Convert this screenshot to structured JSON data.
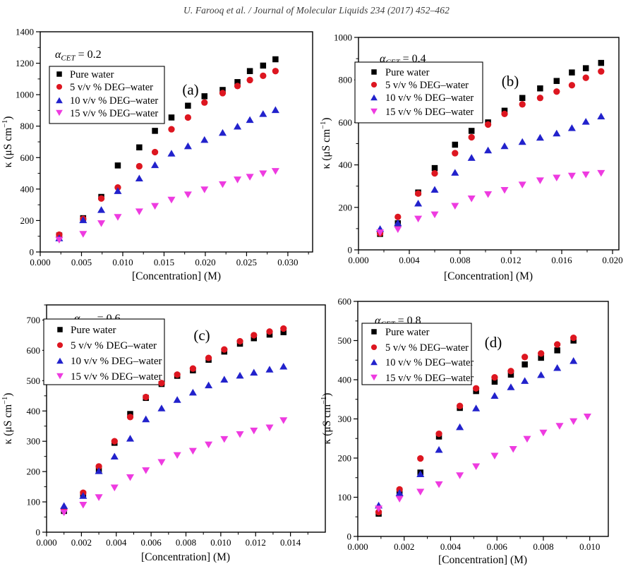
{
  "header": {
    "citation": "U. Farooq et al. / Journal of Molecular Liquids 234 (2017) 452–462"
  },
  "figure": {
    "xlabel": "[Concentration] (M)",
    "ylabel_base": "κ (μS cm",
    "ylabel_sup": "−1",
    "ylabel_close": ")",
    "legend_labels": [
      "Pure water",
      "5 v/v % DEG–water",
      "10 v/v % DEG–water",
      "15 v/v % DEG–water"
    ],
    "colors": {
      "pure_water": "#000000",
      "deg_5": "#dd1620",
      "deg_10": "#2222cc",
      "deg_15": "#ee3be0"
    }
  },
  "chart_data": [
    {
      "type": "scatter",
      "panel_label": "(a)",
      "alpha_title": {
        "symbol": "α",
        "sub": "CET",
        "value": "= 0.2"
      },
      "xlabel": "[Concentration] (M)",
      "ylabel": "κ (μS cm−1)",
      "xlim": [
        0,
        0.033
      ],
      "ylim": [
        0,
        1400
      ],
      "xticks": [
        0.0,
        0.005,
        0.01,
        0.015,
        0.02,
        0.025,
        0.03
      ],
      "yticks": [
        0,
        200,
        400,
        600,
        800,
        1000,
        1200,
        1400
      ],
      "series": [
        {
          "name": "Pure water",
          "marker": "square",
          "color": "#000000",
          "x": [
            0.0023,
            0.0052,
            0.0074,
            0.0094,
            0.012,
            0.0139,
            0.0159,
            0.0179,
            0.0199,
            0.0221,
            0.0239,
            0.0254,
            0.027,
            0.0285
          ],
          "y": [
            105,
            215,
            350,
            550,
            665,
            770,
            855,
            930,
            990,
            1030,
            1080,
            1150,
            1185,
            1225
          ]
        },
        {
          "name": "5 v/v % DEG–water",
          "marker": "circle",
          "color": "#dd1620",
          "x": [
            0.0023,
            0.0052,
            0.0074,
            0.0094,
            0.012,
            0.0139,
            0.0159,
            0.0179,
            0.0199,
            0.0221,
            0.0239,
            0.0254,
            0.027,
            0.0285
          ],
          "y": [
            110,
            210,
            340,
            410,
            545,
            635,
            780,
            855,
            950,
            1010,
            1055,
            1093,
            1120,
            1150
          ]
        },
        {
          "name": "10 v/v % DEG–water",
          "marker": "triangle-up",
          "color": "#2222cc",
          "x": [
            0.0023,
            0.0052,
            0.0074,
            0.0094,
            0.012,
            0.0139,
            0.0159,
            0.0179,
            0.0199,
            0.0221,
            0.0239,
            0.0254,
            0.027,
            0.0285
          ],
          "y": [
            90,
            205,
            270,
            390,
            470,
            555,
            628,
            675,
            715,
            760,
            800,
            842,
            880,
            905
          ]
        },
        {
          "name": "15 v/v % DEG–water",
          "marker": "triangle-down",
          "color": "#ee3be0",
          "x": [
            0.0023,
            0.0052,
            0.0074,
            0.0094,
            0.012,
            0.0139,
            0.0159,
            0.0179,
            0.0199,
            0.0221,
            0.0239,
            0.0254,
            0.027,
            0.0285
          ],
          "y": [
            75,
            112,
            180,
            220,
            255,
            290,
            330,
            363,
            395,
            428,
            458,
            475,
            497,
            512
          ]
        }
      ]
    },
    {
      "type": "scatter",
      "panel_label": "(b)",
      "alpha_title": {
        "symbol": "α",
        "sub": "CET",
        "value": "= 0.4"
      },
      "xlabel": "[Concentration] (M)",
      "ylabel": "κ (μS cm−1)",
      "xlim": [
        0,
        0.0205
      ],
      "ylim": [
        0,
        1000
      ],
      "xticks": [
        0.0,
        0.004,
        0.008,
        0.012,
        0.016,
        0.02
      ],
      "yticks": [
        0,
        200,
        400,
        600,
        800,
        1000
      ],
      "series": [
        {
          "name": "Pure water",
          "marker": "square",
          "color": "#000000",
          "x": [
            0.0017,
            0.0031,
            0.0047,
            0.006,
            0.0076,
            0.0089,
            0.0102,
            0.0115,
            0.0129,
            0.0143,
            0.0156,
            0.0168,
            0.0179,
            0.0191
          ],
          "y": [
            75,
            125,
            270,
            385,
            495,
            560,
            600,
            655,
            715,
            760,
            795,
            835,
            855,
            880
          ]
        },
        {
          "name": "5 v/v % DEG–water",
          "marker": "circle",
          "color": "#dd1620",
          "x": [
            0.0017,
            0.0031,
            0.0047,
            0.006,
            0.0076,
            0.0089,
            0.0102,
            0.0115,
            0.0129,
            0.0143,
            0.0156,
            0.0168,
            0.0179,
            0.0191
          ],
          "y": [
            78,
            155,
            265,
            360,
            455,
            530,
            590,
            640,
            685,
            715,
            745,
            775,
            810,
            840
          ]
        },
        {
          "name": "10 v/v % DEG–water",
          "marker": "triangle-up",
          "color": "#2222cc",
          "x": [
            0.0017,
            0.0031,
            0.0047,
            0.006,
            0.0076,
            0.0089,
            0.0102,
            0.0115,
            0.0129,
            0.0143,
            0.0156,
            0.0168,
            0.0179,
            0.0191
          ],
          "y": [
            100,
            128,
            220,
            285,
            365,
            435,
            470,
            490,
            510,
            530,
            550,
            575,
            605,
            630
          ]
        },
        {
          "name": "15 v/v % DEG–water",
          "marker": "triangle-down",
          "color": "#ee3be0",
          "x": [
            0.0017,
            0.0031,
            0.0047,
            0.006,
            0.0076,
            0.0089,
            0.0102,
            0.0115,
            0.0129,
            0.0143,
            0.0156,
            0.0168,
            0.0179,
            0.0191
          ],
          "y": [
            80,
            95,
            145,
            165,
            205,
            240,
            260,
            280,
            305,
            325,
            338,
            347,
            353,
            360
          ]
        }
      ]
    },
    {
      "type": "scatter",
      "panel_label": "(c)",
      "alpha_title": {
        "symbol": "α",
        "sub": "CET",
        "value": "= 0.6"
      },
      "xlabel": "[Concentration] (M)",
      "ylabel": "κ (μS cm−1)",
      "xlim": [
        0,
        0.016
      ],
      "ylim": [
        0,
        750
      ],
      "xticks": [
        0.0,
        0.002,
        0.004,
        0.006,
        0.008,
        0.01,
        0.012,
        0.014
      ],
      "yticks": [
        0,
        100,
        200,
        300,
        400,
        500,
        600,
        700
      ],
      "series": [
        {
          "name": "Pure water",
          "marker": "square",
          "color": "#000000",
          "x": [
            0.001,
            0.0021,
            0.003,
            0.0039,
            0.0048,
            0.0057,
            0.0066,
            0.0075,
            0.0084,
            0.0093,
            0.0102,
            0.0111,
            0.0119,
            0.0128,
            0.0136
          ],
          "y": [
            70,
            126,
            203,
            295,
            390,
            443,
            489,
            516,
            534,
            569,
            596,
            622,
            640,
            652,
            660
          ]
        },
        {
          "name": "5 v/v % DEG–water",
          "marker": "circle",
          "color": "#dd1620",
          "x": [
            0.001,
            0.0021,
            0.003,
            0.0039,
            0.0048,
            0.0057,
            0.0066,
            0.0075,
            0.0084,
            0.0093,
            0.0102,
            0.0111,
            0.0119,
            0.0128,
            0.0136
          ],
          "y": [
            75,
            130,
            217,
            300,
            380,
            446,
            492,
            520,
            540,
            575,
            603,
            630,
            650,
            662,
            672
          ]
        },
        {
          "name": "10 v/v % DEG–water",
          "marker": "triangle-up",
          "color": "#2222cc",
          "x": [
            0.001,
            0.0021,
            0.003,
            0.0039,
            0.0048,
            0.0057,
            0.0066,
            0.0075,
            0.0084,
            0.0093,
            0.0102,
            0.0111,
            0.0119,
            0.0128,
            0.0136
          ],
          "y": [
            88,
            121,
            203,
            251,
            310,
            374,
            410,
            438,
            462,
            486,
            505,
            518,
            528,
            538,
            548
          ]
        },
        {
          "name": "15 v/v % DEG–water",
          "marker": "triangle-down",
          "color": "#ee3be0",
          "x": [
            0.001,
            0.0021,
            0.003,
            0.0039,
            0.0048,
            0.0057,
            0.0066,
            0.0075,
            0.0084,
            0.0093,
            0.0102,
            0.0111,
            0.0119,
            0.0128,
            0.0136
          ],
          "y": [
            64,
            89,
            114,
            146,
            180,
            203,
            230,
            253,
            267,
            288,
            306,
            322,
            334,
            344,
            368
          ]
        }
      ]
    },
    {
      "type": "scatter",
      "panel_label": "(d)",
      "alpha_title": {
        "symbol": "α",
        "sub": "CET",
        "value": "= 0.8"
      },
      "xlabel": "[Concentration] (M)",
      "ylabel": "κ (μS cm−1)",
      "xlim": [
        0,
        0.0108
      ],
      "ylim": [
        0,
        600
      ],
      "xticks": [
        0.0,
        0.002,
        0.004,
        0.006,
        0.008,
        0.01
      ],
      "yticks": [
        0,
        100,
        200,
        300,
        400,
        500,
        600
      ],
      "series": [
        {
          "name": "Pure water",
          "marker": "square",
          "color": "#000000",
          "x": [
            0.0009,
            0.0018,
            0.0027,
            0.0035,
            0.0044,
            0.0051,
            0.0059,
            0.0066,
            0.0072,
            0.0079,
            0.0086,
            0.0093
          ],
          "y": [
            58,
            116,
            163,
            255,
            328,
            371,
            395,
            413,
            439,
            456,
            475,
            500
          ]
        },
        {
          "name": "5 v/v % DEG–water",
          "marker": "circle",
          "color": "#dd1620",
          "x": [
            0.0009,
            0.0018,
            0.0027,
            0.0035,
            0.0044,
            0.0051,
            0.0059,
            0.0066,
            0.0072,
            0.0079,
            0.0086,
            0.0093
          ],
          "y": [
            62,
            120,
            199,
            262,
            333,
            378,
            406,
            422,
            458,
            467,
            490,
            507
          ]
        },
        {
          "name": "10 v/v % DEG–water",
          "marker": "triangle-up",
          "color": "#2222cc",
          "x": [
            0.0009,
            0.0018,
            0.0027,
            0.0035,
            0.0044,
            0.0051,
            0.0059,
            0.0066,
            0.0072,
            0.0079,
            0.0086,
            0.0093
          ],
          "y": [
            80,
            112,
            160,
            222,
            280,
            328,
            360,
            382,
            398,
            413,
            431,
            449
          ]
        },
        {
          "name": "15 v/v % DEG–water",
          "marker": "triangle-down",
          "color": "#ee3be0",
          "x": [
            0.0009,
            0.0018,
            0.0027,
            0.0035,
            0.0044,
            0.0051,
            0.0059,
            0.0067,
            0.0073,
            0.008,
            0.0087,
            0.0093,
            0.0099
          ],
          "y": [
            70,
            95,
            113,
            132,
            155,
            178,
            205,
            222,
            248,
            264,
            281,
            293,
            305
          ]
        }
      ]
    }
  ]
}
